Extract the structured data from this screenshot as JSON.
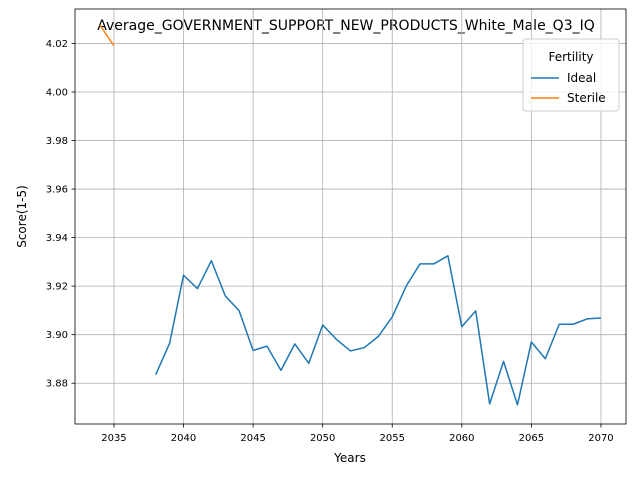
{
  "chart_data": {
    "type": "line",
    "title": "Average_GOVERNMENT_SUPPORT_NEW_PRODUCTS_White_Male_Q3_IQ",
    "xlabel": "Years",
    "ylabel": "Score(1-5)",
    "xlim": [
      2032.2,
      2071.8
    ],
    "ylim": [
      3.8632,
      4.0342
    ],
    "xticks": [
      2035,
      2040,
      2045,
      2050,
      2055,
      2060,
      2065,
      2070
    ],
    "yticks": [
      3.88,
      3.9,
      3.92,
      3.94,
      3.96,
      3.98,
      4.0,
      4.02
    ],
    "ytick_labels": [
      "3.88",
      "3.90",
      "3.92",
      "3.94",
      "3.96",
      "3.98",
      "4.00",
      "4.02"
    ],
    "grid": true,
    "legend": {
      "title": "Fertility",
      "position": "top-right"
    },
    "series": [
      {
        "name": "Ideal",
        "color": "#1f77b4",
        "x": [
          2038,
          2039,
          2040,
          2041,
          2042,
          2043,
          2044,
          2045,
          2046,
          2047,
          2048,
          2049,
          2050,
          2051,
          2052,
          2053,
          2054,
          2055,
          2056,
          2057,
          2058,
          2059,
          2060,
          2061,
          2062,
          2063,
          2064,
          2065,
          2066,
          2067,
          2068,
          2069,
          2070
        ],
        "y": [
          3.8835,
          3.8965,
          3.9245,
          3.919,
          3.9305,
          3.916,
          3.9098,
          3.8935,
          3.8953,
          3.8853,
          3.8962,
          3.8882,
          3.904,
          3.898,
          3.8933,
          3.8947,
          3.8993,
          3.9073,
          3.92,
          3.9292,
          3.9292,
          3.9325,
          3.9033,
          3.9098,
          3.8715,
          3.889,
          3.8711,
          3.897,
          3.8901,
          3.9043,
          3.9043,
          3.9065,
          3.9069
        ]
      },
      {
        "name": "Sterile",
        "color": "#ff7f0e",
        "x": [
          2034,
          2035
        ],
        "y": [
          4.0275,
          4.019
        ]
      }
    ]
  }
}
